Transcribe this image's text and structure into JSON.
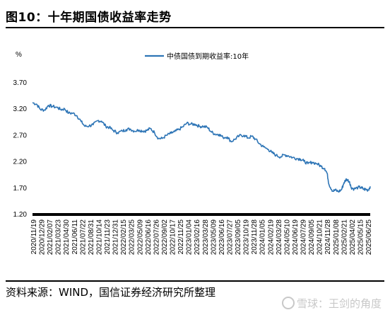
{
  "figure_title": "图10：十年期国债收益率走势",
  "source_note": "资料来源：WIND，国信证券经济研究所整理",
  "watermark": "雪球：王剑的角度",
  "colors": {
    "line": "#2e75b6",
    "axis": "#000000"
  },
  "chart_data": {
    "type": "line",
    "unit_label": "%",
    "ylim": [
      1.2,
      3.7
    ],
    "yticks": [
      "3.70",
      "3.20",
      "2.70",
      "2.20",
      "1.70",
      "1.20"
    ],
    "grid": false,
    "legend_position": "top-center",
    "x_tick_labels": [
      "2020/11/19",
      "2020/12/29",
      "2021/02/07",
      "2021/03/23",
      "2021/04/30",
      "2021/06/11",
      "2021/07/22",
      "2021/08/31",
      "2021/10/14",
      "2021/11/23",
      "2021/12/31",
      "2022/02/15",
      "2022/03/25",
      "2022/05/09",
      "2022/06/16",
      "2022/07/26",
      "2022/09/02",
      "2022/10/17",
      "2022/11/25",
      "2023/01/04",
      "2023/02/16",
      "2023/03/28",
      "2023/05/09",
      "2023/06/16",
      "2023/07/27",
      "2023/09/05",
      "2023/10/19",
      "2023/11/28",
      "2024/01/05",
      "2024/02/19",
      "2024/03/28",
      "2024/05/10",
      "2024/06/19",
      "2024/07/29",
      "2024/09/05",
      "2024/10/21",
      "2024/11/28",
      "2025/01/08",
      "2025/02/21",
      "2025/04/02",
      "2025/05/15",
      "2025/06/25"
    ],
    "series": [
      {
        "name": "中债国债到期收益率:10年",
        "x": [
          "2020/11/19",
          "2020/12/10",
          "2020/12/29",
          "2021/01/20",
          "2021/02/07",
          "2021/02/25",
          "2021/03/23",
          "2021/04/10",
          "2021/04/30",
          "2021/05/20",
          "2021/06/11",
          "2021/07/01",
          "2021/07/22",
          "2021/08/10",
          "2021/08/31",
          "2021/09/20",
          "2021/10/14",
          "2021/11/01",
          "2021/11/23",
          "2021/12/10",
          "2021/12/31",
          "2022/01/20",
          "2022/02/15",
          "2022/03/05",
          "2022/03/25",
          "2022/04/15",
          "2022/05/09",
          "2022/05/30",
          "2022/06/16",
          "2022/07/05",
          "2022/07/26",
          "2022/08/15",
          "2022/09/02",
          "2022/09/25",
          "2022/10/17",
          "2022/11/05",
          "2022/11/25",
          "2022/12/15",
          "2023/01/04",
          "2023/01/25",
          "2023/02/16",
          "2023/03/08",
          "2023/03/28",
          "2023/04/18",
          "2023/05/09",
          "2023/05/28",
          "2023/06/16",
          "2023/07/05",
          "2023/07/27",
          "2023/08/15",
          "2023/09/05",
          "2023/09/25",
          "2023/10/19",
          "2023/11/08",
          "2023/11/28",
          "2023/12/15",
          "2024/01/05",
          "2024/01/25",
          "2024/02/19",
          "2024/03/08",
          "2024/03/28",
          "2024/04/20",
          "2024/05/10",
          "2024/05/30",
          "2024/06/19",
          "2024/07/10",
          "2024/07/29",
          "2024/08/15",
          "2024/09/05",
          "2024/09/25",
          "2024/10/21",
          "2024/11/10",
          "2024/11/28",
          "2024/12/10",
          "2024/12/20",
          "2025/01/08",
          "2025/01/20",
          "2025/02/05",
          "2025/02/21",
          "2025/03/05",
          "2025/03/18",
          "2025/04/02",
          "2025/04/10",
          "2025/04/25",
          "2025/05/15",
          "2025/05/30",
          "2025/06/10",
          "2025/06/25",
          "2025/07/05",
          "2025/07/15"
        ],
        "values": [
          3.31,
          3.28,
          3.18,
          3.17,
          3.26,
          3.24,
          3.22,
          3.18,
          3.19,
          3.11,
          3.11,
          3.06,
          2.95,
          2.86,
          2.87,
          2.89,
          2.97,
          2.96,
          2.86,
          2.84,
          2.78,
          2.74,
          2.77,
          2.8,
          2.81,
          2.77,
          2.79,
          2.77,
          2.78,
          2.82,
          2.74,
          2.63,
          2.63,
          2.69,
          2.73,
          2.76,
          2.8,
          2.85,
          2.92,
          2.9,
          2.9,
          2.86,
          2.86,
          2.84,
          2.75,
          2.71,
          2.71,
          2.65,
          2.66,
          2.57,
          2.62,
          2.68,
          2.69,
          2.64,
          2.67,
          2.62,
          2.53,
          2.47,
          2.42,
          2.36,
          2.31,
          2.28,
          2.32,
          2.3,
          2.27,
          2.25,
          2.24,
          2.2,
          2.15,
          2.18,
          2.15,
          2.1,
          2.06,
          1.97,
          1.75,
          1.63,
          1.65,
          1.62,
          1.66,
          1.79,
          1.86,
          1.81,
          1.7,
          1.67,
          1.7,
          1.7,
          1.67,
          1.66,
          1.65,
          1.72
        ]
      }
    ]
  }
}
